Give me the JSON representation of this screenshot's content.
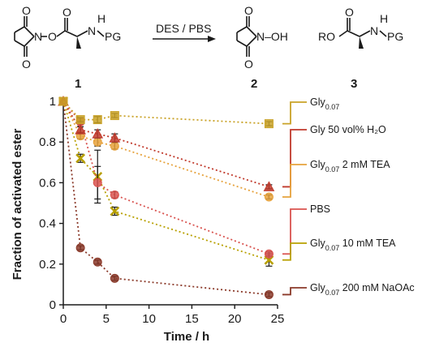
{
  "scheme": {
    "reaction_label": "DES / PBS",
    "compound_numbers": [
      "1",
      "2",
      "3"
    ],
    "atom_labels": {
      "c1_O_top": "O",
      "c1_O_bottom": "O",
      "c1_N": "N",
      "c1_O_link": "O",
      "c1_O_carbonyl": "O",
      "c1_NH": "N",
      "c1_H": "H",
      "c1_PG": "PG",
      "c2_O_top": "O",
      "c2_O_bottom": "O",
      "c2_NOH": "N–OH",
      "c3_RO": "RO",
      "c3_O_carbonyl": "O",
      "c3_NH": "N",
      "c3_H": "H",
      "c3_PG": "PG"
    }
  },
  "chart_data": {
    "type": "line",
    "xlabel": "Time / h",
    "ylabel": "Fraction of activated ester",
    "xlim": [
      0,
      25
    ],
    "ylim": [
      0,
      1
    ],
    "xticks": [
      0,
      5,
      10,
      15,
      20,
      25
    ],
    "yticks": [
      0,
      0.2,
      0.4,
      0.6,
      0.8,
      1
    ],
    "grid": false,
    "legend_placement": "right",
    "series": [
      {
        "name": "Gly",
        "name_sub": "0.07",
        "name_suffix": "",
        "color": "#c9a227",
        "marker": "square",
        "x": [
          0,
          2,
          4,
          6,
          24
        ],
        "y": [
          1.0,
          0.91,
          0.91,
          0.93,
          0.89
        ],
        "err": [
          0,
          0.01,
          0.015,
          0.01,
          0.01
        ]
      },
      {
        "name": "Gly 50 vol% H₂O",
        "name_sub": "",
        "name_suffix": "",
        "color": "#c0392b",
        "marker": "triangle",
        "x": [
          0,
          2,
          4,
          6,
          24
        ],
        "y": [
          1.0,
          0.86,
          0.84,
          0.82,
          0.58
        ],
        "err": [
          0,
          0.015,
          0.02,
          0.02,
          0.01
        ]
      },
      {
        "name": "Gly",
        "name_sub": "0.07",
        "name_suffix": " 2 mM TEA",
        "color": "#e6a23c",
        "marker": "circle",
        "x": [
          0,
          2,
          4,
          6,
          24
        ],
        "y": [
          1.0,
          0.83,
          0.8,
          0.78,
          0.53
        ],
        "err": [
          0,
          0.015,
          0.02,
          0.015,
          0.01
        ]
      },
      {
        "name": "PBS",
        "name_sub": "",
        "name_suffix": "",
        "color": "#d9534f",
        "marker": "circle",
        "x": [
          0,
          2,
          4,
          6,
          24
        ],
        "y": [
          1.0,
          0.9,
          0.6,
          0.54,
          0.25
        ],
        "err": [
          0,
          0.015,
          0.08,
          0.015,
          0.01
        ]
      },
      {
        "name": "Gly",
        "name_sub": "0.07",
        "name_suffix": " 10 mM TEA",
        "color": "#b8a000",
        "marker": "x",
        "x": [
          0,
          2,
          4,
          6,
          24
        ],
        "y": [
          1.0,
          0.72,
          0.63,
          0.46,
          0.22
        ],
        "err": [
          0,
          0.02,
          0.13,
          0.02,
          0.03
        ]
      },
      {
        "name": "Gly",
        "name_sub": "0.07",
        "name_suffix": " 200 mM NaOAc",
        "color": "#8b3a2a",
        "marker": "circle",
        "x": [
          0,
          2,
          4,
          6,
          24
        ],
        "y": [
          1.0,
          0.28,
          0.21,
          0.13,
          0.05
        ],
        "err": [
          0,
          0.01,
          0.01,
          0.01,
          0.01
        ]
      }
    ]
  }
}
